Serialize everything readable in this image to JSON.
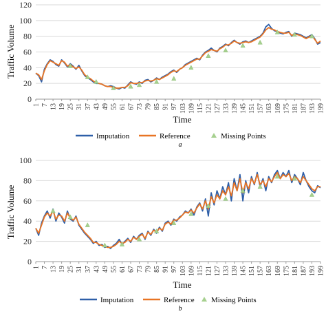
{
  "chart_data": [
    {
      "type": "line",
      "xlabel": "Time",
      "ylabel": "Traffic Volume",
      "ylim": [
        0,
        120
      ],
      "yticks": [
        0,
        20,
        40,
        60,
        80,
        100,
        120
      ],
      "xticks": [
        "1",
        "7",
        "13",
        "19",
        "25",
        "31",
        "37",
        "43",
        "49",
        "55",
        "61",
        "67",
        "73",
        "79",
        "85",
        "91",
        "97",
        "103",
        "109",
        "115",
        "121",
        "127",
        "133",
        "139",
        "145",
        "151",
        "157",
        "163",
        "169",
        "175",
        "181",
        "187",
        "193",
        "199"
      ],
      "x": [
        1,
        3,
        5,
        7,
        9,
        11,
        13,
        15,
        17,
        19,
        21,
        23,
        25,
        27,
        29,
        31,
        33,
        35,
        37,
        39,
        41,
        43,
        45,
        47,
        49,
        51,
        53,
        55,
        57,
        59,
        61,
        63,
        65,
        67,
        69,
        71,
        73,
        75,
        77,
        79,
        81,
        83,
        85,
        87,
        89,
        91,
        93,
        95,
        97,
        99,
        101,
        103,
        105,
        107,
        109,
        111,
        113,
        115,
        117,
        119,
        121,
        123,
        125,
        127,
        129,
        131,
        133,
        135,
        137,
        139,
        141,
        143,
        145,
        147,
        149,
        151,
        153,
        155,
        157,
        159,
        161,
        163,
        165,
        167,
        169,
        171,
        173,
        175,
        177,
        179,
        181,
        183,
        185,
        187,
        189,
        191,
        193,
        195,
        197,
        199
      ],
      "series": [
        {
          "name": "Imputation",
          "color": "#2e5fa8",
          "values": [
            33,
            30,
            22,
            38,
            45,
            50,
            48,
            44,
            42,
            50,
            46,
            41,
            45,
            42,
            38,
            43,
            36,
            30,
            27,
            25,
            22,
            20,
            20,
            19,
            17,
            16,
            17,
            16,
            14,
            13,
            15,
            14,
            18,
            22,
            20,
            19,
            22,
            20,
            24,
            25,
            22,
            24,
            27,
            25,
            28,
            30,
            32,
            35,
            37,
            34,
            38,
            40,
            44,
            46,
            48,
            50,
            52,
            50,
            56,
            60,
            62,
            65,
            62,
            60,
            65,
            67,
            70,
            68,
            72,
            75,
            72,
            70,
            73,
            74,
            72,
            74,
            76,
            78,
            80,
            84,
            92,
            95,
            90,
            87,
            86,
            84,
            83,
            85,
            86,
            80,
            84,
            83,
            82,
            80,
            78,
            80,
            82,
            77,
            70,
            72
          ]
        },
        {
          "name": "Reference",
          "color": "#e87424",
          "values": [
            33,
            31,
            25,
            36,
            44,
            49,
            47,
            45,
            43,
            49,
            47,
            42,
            44,
            41,
            39,
            41,
            37,
            31,
            28,
            26,
            23,
            21,
            20,
            19,
            17,
            16,
            16,
            15,
            14,
            14,
            15,
            15,
            17,
            21,
            20,
            20,
            21,
            21,
            23,
            24,
            23,
            24,
            26,
            25,
            27,
            29,
            31,
            34,
            36,
            35,
            38,
            40,
            43,
            45,
            47,
            49,
            51,
            51,
            55,
            59,
            61,
            63,
            62,
            61,
            64,
            66,
            69,
            69,
            71,
            74,
            72,
            71,
            72,
            73,
            72,
            73,
            75,
            77,
            79,
            83,
            88,
            91,
            89,
            88,
            86,
            85,
            84,
            84,
            85,
            81,
            83,
            82,
            81,
            79,
            77,
            79,
            81,
            76,
            71,
            74
          ]
        },
        {
          "name": "Missing Points",
          "color": "#a6d08f",
          "x": [
            25,
            37,
            43,
            55,
            67,
            73,
            85,
            97,
            109,
            121,
            133,
            145,
            157,
            169,
            181,
            193
          ],
          "values": [
            42,
            28,
            22,
            14,
            16,
            18,
            22,
            26,
            40,
            55,
            62,
            68,
            72,
            85,
            82,
            80
          ]
        }
      ]
    },
    {
      "type": "line",
      "xlabel": "Time",
      "ylabel": "Traffic Volume",
      "ylim": [
        0,
        100
      ],
      "yticks": [
        0,
        20,
        40,
        60,
        80,
        100
      ],
      "xticks": [
        "1",
        "7",
        "13",
        "19",
        "25",
        "31",
        "37",
        "43",
        "49",
        "55",
        "61",
        "67",
        "73",
        "79",
        "85",
        "91",
        "97",
        "103",
        "109",
        "115",
        "121",
        "127",
        "133",
        "139",
        "145",
        "151",
        "157",
        "163",
        "169",
        "175",
        "181",
        "187",
        "193",
        "199"
      ],
      "x": [
        1,
        3,
        5,
        7,
        9,
        11,
        13,
        15,
        17,
        19,
        21,
        23,
        25,
        27,
        29,
        31,
        33,
        35,
        37,
        39,
        41,
        43,
        45,
        47,
        49,
        51,
        53,
        55,
        57,
        59,
        61,
        63,
        65,
        67,
        69,
        71,
        73,
        75,
        77,
        79,
        81,
        83,
        85,
        87,
        89,
        91,
        93,
        95,
        97,
        99,
        101,
        103,
        105,
        107,
        109,
        111,
        113,
        115,
        117,
        119,
        121,
        123,
        125,
        127,
        129,
        131,
        133,
        135,
        137,
        139,
        141,
        143,
        145,
        147,
        149,
        151,
        153,
        155,
        157,
        159,
        161,
        163,
        165,
        167,
        169,
        171,
        173,
        175,
        177,
        179,
        181,
        183,
        185,
        187,
        189,
        191,
        193,
        195,
        197,
        199
      ],
      "series": [
        {
          "name": "Imputation",
          "color": "#2e5fa8",
          "values": [
            33,
            26,
            38,
            45,
            50,
            43,
            52,
            40,
            48,
            44,
            38,
            50,
            42,
            40,
            45,
            36,
            32,
            28,
            25,
            22,
            18,
            20,
            16,
            17,
            14,
            15,
            13,
            16,
            18,
            22,
            17,
            20,
            23,
            19,
            25,
            22,
            26,
            28,
            22,
            30,
            26,
            32,
            28,
            34,
            30,
            38,
            40,
            36,
            42,
            40,
            44,
            46,
            50,
            48,
            52,
            46,
            54,
            58,
            50,
            62,
            45,
            68,
            56,
            70,
            62,
            74,
            66,
            78,
            60,
            82,
            70,
            86,
            60,
            80,
            68,
            84,
            76,
            88,
            74,
            82,
            70,
            84,
            78,
            86,
            90,
            82,
            88,
            84,
            90,
            78,
            86,
            82,
            76,
            88,
            80,
            74,
            70,
            68,
            75,
            73
          ]
        },
        {
          "name": "Reference",
          "color": "#e87424",
          "values": [
            33,
            28,
            36,
            44,
            48,
            45,
            50,
            42,
            46,
            45,
            40,
            48,
            43,
            41,
            44,
            37,
            33,
            29,
            26,
            23,
            19,
            19,
            17,
            16,
            15,
            14,
            14,
            15,
            17,
            20,
            18,
            19,
            22,
            20,
            24,
            22,
            25,
            27,
            23,
            29,
            27,
            31,
            29,
            33,
            31,
            37,
            39,
            37,
            41,
            41,
            43,
            46,
            49,
            48,
            51,
            48,
            53,
            57,
            52,
            60,
            52,
            64,
            58,
            66,
            62,
            70,
            66,
            74,
            65,
            78,
            70,
            82,
            68,
            78,
            72,
            82,
            77,
            86,
            76,
            80,
            74,
            82,
            79,
            84,
            88,
            82,
            86,
            84,
            87,
            80,
            84,
            82,
            78,
            84,
            80,
            76,
            72,
            70,
            74,
            74
          ]
        },
        {
          "name": "Missing Points",
          "color": "#a6d08f",
          "x": [
            13,
            25,
            37,
            49,
            61,
            73,
            85,
            97,
            109,
            121,
            133,
            145,
            157,
            169,
            181,
            193
          ],
          "values": [
            50,
            44,
            36,
            16,
            17,
            22,
            30,
            38,
            47,
            55,
            62,
            70,
            74,
            84,
            82,
            66
          ]
        }
      ]
    }
  ],
  "panels": {
    "a": {
      "ylabel": "Traffic Volume",
      "xlabel": "Time",
      "yticks": [
        "0",
        "20",
        "40",
        "60",
        "80",
        "100",
        "120"
      ],
      "legend": [
        "Imputation",
        "Reference",
        "Missing Points"
      ],
      "caption": "a"
    },
    "b": {
      "ylabel": "Traffic Volume",
      "xlabel": "Time",
      "yticks": [
        "0",
        "20",
        "40",
        "60",
        "80",
        "100"
      ],
      "legend": [
        "Imputation",
        "Reference",
        "Missing Points"
      ],
      "caption": "b"
    }
  }
}
